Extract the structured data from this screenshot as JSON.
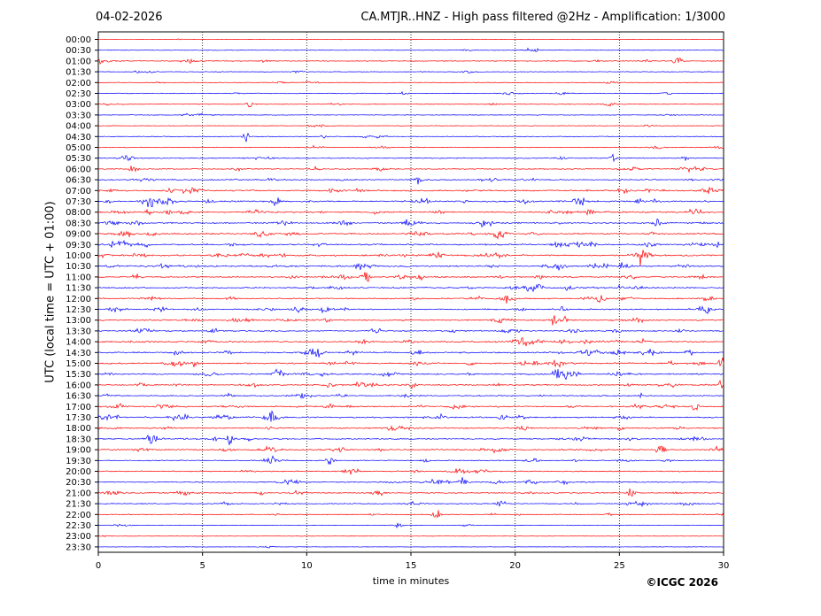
{
  "header": {
    "date": "04-02-2026",
    "title": "CA.MTJR..HNZ - High pass filtered @2Hz - Amplification: 1/3000"
  },
  "footer": {
    "copyright": "©ICGC 2026"
  },
  "colors": {
    "odd_hour_trace": "#ff0000",
    "half_hour_trace": "#0000ff",
    "gridline": "#000000"
  },
  "chart_data": {
    "type": "line",
    "title": "CA.MTJR..HNZ - High pass filtered @2Hz - Amplification: 1/3000",
    "xlabel": "time in minutes",
    "ylabel": "UTC (local time = UTC + 01:00)",
    "xlim": [
      0,
      30
    ],
    "x_ticks": [
      "0",
      "5",
      "10",
      "15",
      "20",
      "25",
      "30"
    ],
    "x_gridlines": [
      5,
      10,
      15,
      20,
      25
    ],
    "grid": "vertical dotted",
    "y_ticks": [
      "00:00",
      "00:30",
      "01:00",
      "01:30",
      "02:00",
      "02:30",
      "03:00",
      "03:30",
      "04:00",
      "04:30",
      "05:00",
      "05:30",
      "06:00",
      "06:30",
      "07:00",
      "07:30",
      "08:00",
      "08:30",
      "09:00",
      "09:30",
      "10:00",
      "10:30",
      "11:00",
      "11:30",
      "12:00",
      "12:30",
      "13:00",
      "13:30",
      "14:00",
      "14:30",
      "15:00",
      "15:30",
      "16:00",
      "16:30",
      "17:00",
      "17:30",
      "18:00",
      "18:30",
      "19:00",
      "19:30",
      "20:00",
      "20:30",
      "21:00",
      "21:30",
      "22:00",
      "22:30",
      "23:00",
      "23:30"
    ],
    "trace_colors": [
      "red",
      "blue"
    ],
    "trace_activity": [
      0.1,
      0.15,
      0.4,
      0.25,
      0.3,
      0.35,
      0.3,
      0.2,
      0.15,
      0.3,
      0.35,
      0.5,
      0.55,
      0.6,
      0.8,
      0.9,
      0.85,
      0.8,
      0.85,
      0.9,
      0.95,
      0.9,
      0.85,
      0.8,
      0.7,
      0.75,
      0.8,
      0.7,
      0.8,
      0.85,
      0.9,
      0.85,
      0.8,
      0.6,
      0.85,
      0.9,
      0.7,
      0.75,
      0.8,
      0.5,
      0.55,
      0.6,
      0.6,
      0.5,
      0.4,
      0.15,
      0.05,
      0.05
    ],
    "notable_events": [
      {
        "time": "00:30",
        "minute": 20.9
      },
      {
        "time": "01:00",
        "minute": 27.8
      },
      {
        "time": "03:00",
        "minute": 7.3
      },
      {
        "time": "04:30",
        "minute": 7.1
      },
      {
        "time": "05:30",
        "minute": 24.7
      },
      {
        "time": "06:00",
        "minute": 1.7
      },
      {
        "time": "06:30",
        "minute": 15.3
      },
      {
        "time": "07:30",
        "minute": 8.6
      },
      {
        "time": "08:00",
        "minute": 23.6
      },
      {
        "time": "08:30",
        "minute": 26.8
      },
      {
        "time": "09:00",
        "minute": 19.3
      },
      {
        "time": "10:00",
        "minute": 26.0
      },
      {
        "time": "10:30",
        "minute": 25.3
      },
      {
        "time": "11:00",
        "minute": 12.8
      },
      {
        "time": "11:30",
        "minute": 21.1
      },
      {
        "time": "12:00",
        "minute": 24.1
      },
      {
        "time": "12:30",
        "minute": 29.1
      },
      {
        "time": "13:00",
        "minute": 21.9
      },
      {
        "time": "13:30",
        "minute": 5.5
      },
      {
        "time": "14:30",
        "minute": 15.3
      },
      {
        "time": "15:00",
        "minute": 29.9
      },
      {
        "time": "15:30",
        "minute": 8.6
      },
      {
        "time": "16:00",
        "minute": 29.9
      },
      {
        "time": "17:00",
        "minute": 28.6
      },
      {
        "time": "17:30",
        "minute": 8.4
      },
      {
        "time": "18:30",
        "minute": 6.3
      },
      {
        "time": "19:00",
        "minute": 27.0
      },
      {
        "time": "19:30",
        "minute": 11.1
      },
      {
        "time": "20:30",
        "minute": 17.5
      },
      {
        "time": "21:00",
        "minute": 25.6
      },
      {
        "time": "21:30",
        "minute": 19.3
      },
      {
        "time": "22:00",
        "minute": 16.2
      },
      {
        "time": "22:30",
        "minute": 14.4
      }
    ]
  }
}
